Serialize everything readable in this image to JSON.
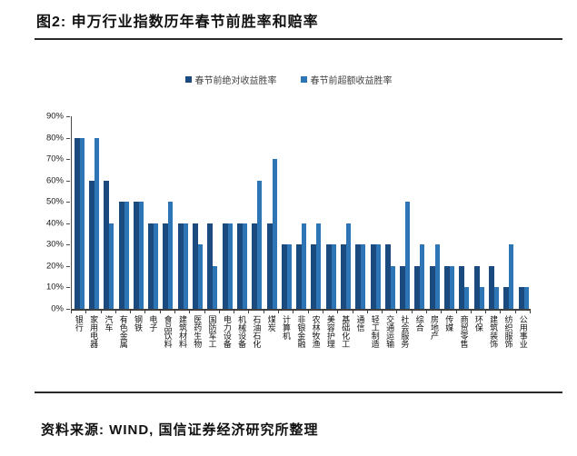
{
  "title": "图2: 申万行业指数历年春节前胜率和赔率",
  "source": "资料来源: WIND, 国信证券经济研究所整理",
  "chart_data": {
    "type": "bar",
    "title": "图2: 申万行业指数历年春节前胜率和赔率",
    "xlabel": "",
    "ylabel": "",
    "ylim": [
      0,
      90
    ],
    "yticks": [
      "90%",
      "80%",
      "70%",
      "60%",
      "50%",
      "40%",
      "30%",
      "20%",
      "10%",
      "0%"
    ],
    "grid": "off",
    "legend_position": "top-center",
    "categories": [
      "银行",
      "家用电器",
      "汽车",
      "有色金属",
      "钢铁",
      "电子",
      "食品饮料",
      "建筑材料",
      "医药生物",
      "国防军工",
      "电力设备",
      "机械设备",
      "石油石化",
      "煤炭",
      "计算机",
      "非银金融",
      "农林牧渔",
      "美容护理",
      "基础化工",
      "通信",
      "轻工制造",
      "交通运输",
      "社会服务",
      "综合",
      "房地产",
      "传媒",
      "商贸零售",
      "环保",
      "建筑装饰",
      "纺织服饰",
      "公用事业"
    ],
    "series": [
      {
        "name": "春节前绝对收益胜率",
        "color": "#1B4A7E",
        "unit": "%",
        "values": [
          80,
          60,
          60,
          50,
          50,
          40,
          40,
          40,
          40,
          40,
          40,
          40,
          40,
          40,
          30,
          30,
          30,
          30,
          30,
          30,
          30,
          30,
          20,
          20,
          20,
          20,
          20,
          20,
          20,
          10,
          10
        ]
      },
      {
        "name": "春节前超额收益胜率",
        "color": "#2E75B6",
        "unit": "%",
        "values": [
          80,
          80,
          40,
          50,
          50,
          40,
          50,
          40,
          30,
          20,
          40,
          40,
          60,
          70,
          30,
          40,
          40,
          30,
          40,
          30,
          30,
          20,
          50,
          30,
          30,
          20,
          10,
          10,
          10,
          30,
          10
        ]
      }
    ]
  }
}
